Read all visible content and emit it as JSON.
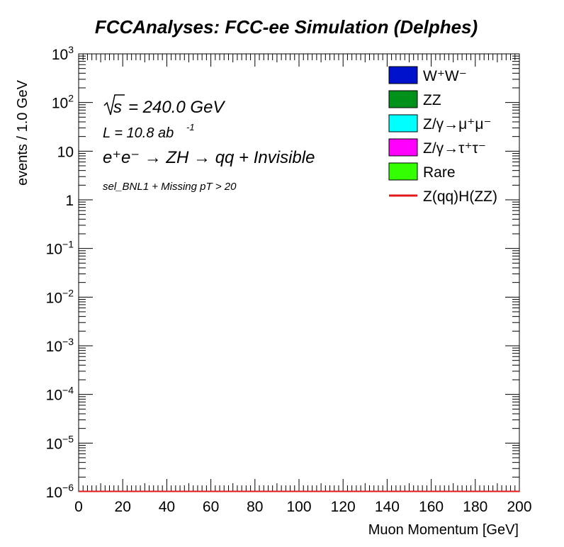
{
  "chart_data": {
    "type": "bar",
    "stacked": true,
    "title": "FCCAnalyses: FCC-ee Simulation (Delphes)",
    "xlabel": "Muon Momentum [GeV]",
    "ylabel": "events / 1.0 GeV",
    "xlim": [
      0,
      200
    ],
    "ylim": [
      1e-06,
      1000
    ],
    "yscale": "log",
    "grid": false,
    "x_ticks": [
      "0",
      "20",
      "40",
      "60",
      "80",
      "100",
      "120",
      "140",
      "160",
      "180",
      "200"
    ],
    "y_ticks": [
      {
        "base": "10",
        "exp": "3"
      },
      {
        "base": "10",
        "exp": "2"
      },
      {
        "base": "10",
        "exp": ""
      },
      {
        "base": "1",
        "exp": ""
      },
      {
        "base": "10",
        "exp": "−1"
      },
      {
        "base": "10",
        "exp": "−2"
      },
      {
        "base": "10",
        "exp": "−3"
      },
      {
        "base": "10",
        "exp": "−4"
      },
      {
        "base": "10",
        "exp": "−5"
      },
      {
        "base": "10",
        "exp": "−6"
      }
    ],
    "annotations": {
      "sqrt_s": "= 240.0 GeV",
      "lumi_prefix": "L = 10.8 ab",
      "lumi_exp": "-1",
      "process": "e⁺e⁻ → ZH → qq + Invisible",
      "selection": "sel_BNL1 + Missing pT > 20"
    },
    "legend_position": "top-right",
    "series": [
      {
        "name": "W⁺W⁻",
        "color": "#0011cc",
        "kind": "fill",
        "values": []
      },
      {
        "name": "ZZ",
        "color": "#00911a",
        "kind": "fill",
        "values": []
      },
      {
        "name": "Z/γ→μ⁺μ⁻",
        "color": "#00ffff",
        "kind": "fill",
        "values": []
      },
      {
        "name": "Z/γ→τ⁺τ⁻",
        "color": "#ff00ff",
        "kind": "fill",
        "values": []
      },
      {
        "name": "Rare",
        "color": "#33ff00",
        "kind": "fill",
        "values": []
      },
      {
        "name": "Z(qq)H(ZZ)",
        "color": "#e31a1c",
        "kind": "line",
        "values": []
      }
    ]
  }
}
